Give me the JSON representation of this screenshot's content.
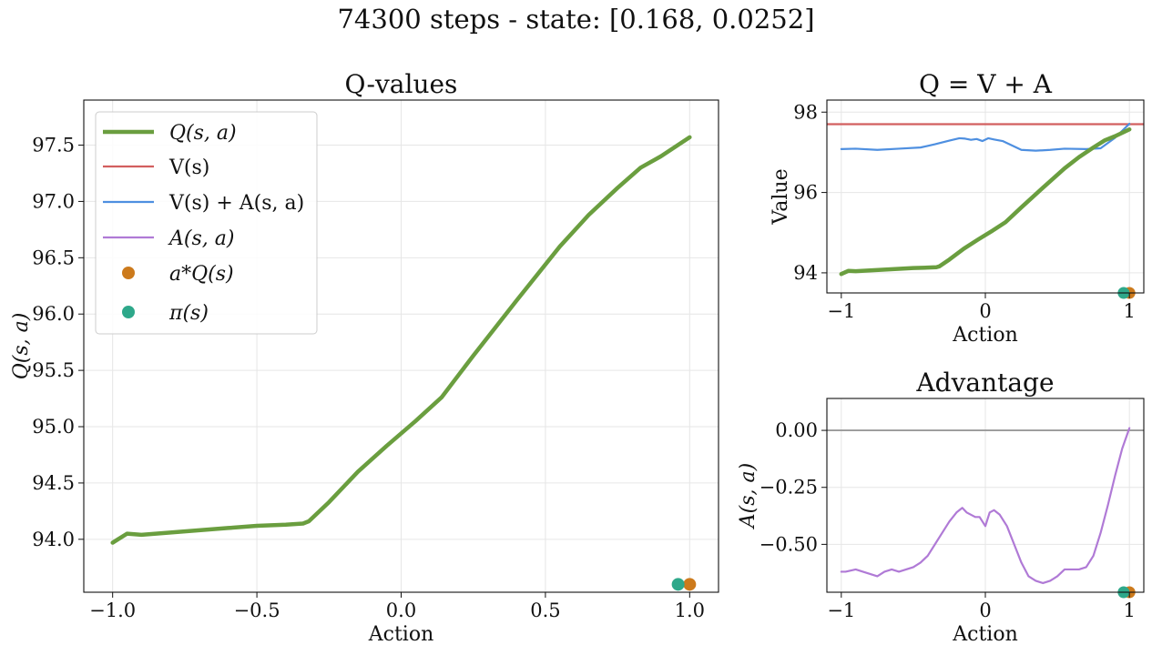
{
  "figure": {
    "suptitle": "74300 steps - state: [0.168, 0.0252]"
  },
  "colors": {
    "q": "#6a9e3f",
    "v": "#d25f5f",
    "v_plus_a": "#4e8fe0",
    "a": "#b07ad6",
    "a_star": "#cc7a1c",
    "pi": "#2ea88a",
    "zero_line": "#999999",
    "grid": "#e6e6e6"
  },
  "chart_data": [
    {
      "type": "line",
      "title": "Q-values",
      "xlabel": "Action",
      "ylabel": "Q(s, a)",
      "xlim": [
        -1.1,
        1.1
      ],
      "ylim": [
        93.53,
        97.9
      ],
      "grid": true,
      "legend_position": "upper-left",
      "x_ticks": [
        -1.0,
        -0.5,
        0.0,
        0.5,
        1.0
      ],
      "x_tick_labels": [
        "−1.0",
        "−0.5",
        "0.0",
        "0.5",
        "1.0"
      ],
      "y_ticks": [
        94.0,
        94.5,
        95.0,
        95.5,
        96.0,
        96.5,
        97.0,
        97.5
      ],
      "y_tick_labels": [
        "94.0",
        "94.5",
        "95.0",
        "95.5",
        "96.0",
        "96.5",
        "97.0",
        "97.5"
      ],
      "legend": [
        {
          "label": "Q(s, a)",
          "kind": "line",
          "color_key": "q"
        },
        {
          "label": "V(s)",
          "kind": "line",
          "color_key": "v"
        },
        {
          "label": "V(s) + A(s, a)",
          "kind": "line",
          "color_key": "v_plus_a"
        },
        {
          "label": "A(s, a)",
          "kind": "line",
          "color_key": "a"
        },
        {
          "label": "a*Q(s)",
          "kind": "marker",
          "color_key": "a_star"
        },
        {
          "label": "π(s)",
          "kind": "marker",
          "color_key": "pi"
        }
      ],
      "series": [
        {
          "name": "Q(s, a)",
          "color_key": "q",
          "style": "thick",
          "x": [
            -1.0,
            -0.95,
            -0.9,
            -0.8,
            -0.7,
            -0.6,
            -0.5,
            -0.4,
            -0.34,
            -0.32,
            -0.25,
            -0.15,
            -0.05,
            0.05,
            0.14,
            0.25,
            0.4,
            0.55,
            0.65,
            0.75,
            0.83,
            0.9,
            1.0
          ],
          "y": [
            93.97,
            94.05,
            94.04,
            94.06,
            94.08,
            94.1,
            94.12,
            94.13,
            94.14,
            94.16,
            94.33,
            94.6,
            94.83,
            95.05,
            95.26,
            95.63,
            96.12,
            96.6,
            96.88,
            97.12,
            97.3,
            97.4,
            97.57
          ]
        }
      ],
      "markers": [
        {
          "name": "a*Q(s)",
          "color_key": "a_star",
          "x": 1.0,
          "y": 93.6
        },
        {
          "name": "π(s)",
          "color_key": "pi",
          "x": 0.96,
          "y": 93.6
        }
      ]
    },
    {
      "type": "line",
      "title": "Q = V + A",
      "xlabel": "Action",
      "ylabel": "Value",
      "xlim": [
        -1.1,
        1.1
      ],
      "ylim": [
        93.5,
        98.3
      ],
      "grid": true,
      "x_ticks": [
        -1,
        0,
        1
      ],
      "x_tick_labels": [
        "−1",
        "0",
        "1"
      ],
      "y_ticks": [
        94,
        96,
        98
      ],
      "y_tick_labels": [
        "94",
        "96",
        "98"
      ],
      "series": [
        {
          "name": "V(s)",
          "color_key": "v",
          "style": "normal",
          "x": [
            -1.1,
            1.1
          ],
          "y": [
            97.7,
            97.7
          ]
        },
        {
          "name": "V(s) + A(s, a)",
          "color_key": "v_plus_a",
          "style": "normal",
          "x": [
            -1.0,
            -0.9,
            -0.75,
            -0.6,
            -0.45,
            -0.35,
            -0.25,
            -0.18,
            -0.14,
            -0.1,
            -0.06,
            -0.02,
            0.02,
            0.06,
            0.12,
            0.18,
            0.25,
            0.35,
            0.45,
            0.55,
            0.7,
            0.8,
            0.9,
            1.0
          ],
          "y": [
            97.08,
            97.09,
            97.06,
            97.09,
            97.12,
            97.2,
            97.29,
            97.35,
            97.34,
            97.31,
            97.33,
            97.28,
            97.35,
            97.32,
            97.28,
            97.18,
            97.06,
            97.04,
            97.06,
            97.09,
            97.08,
            97.1,
            97.36,
            97.71
          ]
        },
        {
          "name": "Q(s, a)",
          "color_key": "q",
          "style": "thick",
          "x": [
            -1.0,
            -0.95,
            -0.9,
            -0.8,
            -0.7,
            -0.6,
            -0.5,
            -0.4,
            -0.34,
            -0.32,
            -0.25,
            -0.15,
            -0.05,
            0.05,
            0.14,
            0.25,
            0.4,
            0.55,
            0.65,
            0.75,
            0.83,
            0.9,
            1.0
          ],
          "y": [
            93.97,
            94.05,
            94.04,
            94.06,
            94.08,
            94.1,
            94.12,
            94.13,
            94.14,
            94.16,
            94.33,
            94.6,
            94.83,
            95.05,
            95.26,
            95.63,
            96.12,
            96.6,
            96.88,
            97.12,
            97.3,
            97.4,
            97.57
          ]
        }
      ],
      "markers": [
        {
          "name": "a*Q(s)",
          "color_key": "a_star",
          "x": 1.0,
          "y": 93.5
        },
        {
          "name": "π(s)",
          "color_key": "pi",
          "x": 0.96,
          "y": 93.5
        }
      ]
    },
    {
      "type": "line",
      "title": "Advantage",
      "xlabel": "Action",
      "ylabel": "A(s, a)",
      "xlim": [
        -1.1,
        1.1
      ],
      "ylim": [
        -0.71,
        0.14
      ],
      "grid": true,
      "x_ticks": [
        -1,
        0,
        1
      ],
      "x_tick_labels": [
        "−1",
        "0",
        "1"
      ],
      "y_ticks": [
        0.0,
        -0.25,
        -0.5
      ],
      "y_tick_labels": [
        "0.00",
        "−0.25",
        "−0.50"
      ],
      "reference_line": {
        "y": 0.0,
        "color_key": "zero_line"
      },
      "series": [
        {
          "name": "A(s, a)",
          "color_key": "a",
          "style": "normal",
          "x": [
            -1.0,
            -0.97,
            -0.9,
            -0.85,
            -0.8,
            -0.75,
            -0.7,
            -0.65,
            -0.6,
            -0.55,
            -0.5,
            -0.45,
            -0.4,
            -0.35,
            -0.3,
            -0.25,
            -0.2,
            -0.16,
            -0.13,
            -0.1,
            -0.07,
            -0.04,
            0.0,
            0.03,
            0.06,
            0.1,
            0.15,
            0.2,
            0.25,
            0.3,
            0.35,
            0.4,
            0.45,
            0.5,
            0.55,
            0.6,
            0.65,
            0.7,
            0.75,
            0.8,
            0.85,
            0.9,
            0.95,
            1.0
          ],
          "y": [
            -0.62,
            -0.62,
            -0.61,
            -0.62,
            -0.63,
            -0.64,
            -0.62,
            -0.61,
            -0.62,
            -0.61,
            -0.6,
            -0.58,
            -0.55,
            -0.5,
            -0.45,
            -0.4,
            -0.36,
            -0.34,
            -0.36,
            -0.37,
            -0.38,
            -0.38,
            -0.42,
            -0.36,
            -0.35,
            -0.37,
            -0.42,
            -0.5,
            -0.58,
            -0.64,
            -0.66,
            -0.67,
            -0.66,
            -0.64,
            -0.61,
            -0.61,
            -0.61,
            -0.6,
            -0.55,
            -0.45,
            -0.33,
            -0.2,
            -0.08,
            0.01
          ]
        }
      ],
      "markers": [
        {
          "name": "a*Q(s)",
          "color_key": "a_star",
          "x": 1.0,
          "y": -0.71
        },
        {
          "name": "π(s)",
          "color_key": "pi",
          "x": 0.96,
          "y": -0.71
        }
      ]
    }
  ]
}
